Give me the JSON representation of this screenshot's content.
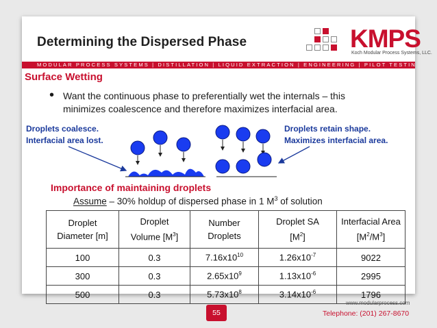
{
  "slide": {
    "title": "Determining the Dispersed Phase",
    "banner": "MODULAR PROCESS SYSTEMS | DISTILLATION | LIQUID EXTRACTION | ENGINEERING | PILOT TESTING",
    "subhead": "Surface Wetting",
    "bullet": "Want the continuous phase to preferentially wet the internals – this minimizes coalescence and therefore maximizes interfacial area.",
    "label_left_1": "Droplets coalesce.",
    "label_left_2": "Interfacial area lost.",
    "label_right_1": "Droplets retain shape.",
    "label_right_2": "Maximizes interfacial area.",
    "importance": "Importance of maintaining droplets",
    "assume_word": "Assume",
    "assume_text": " – 30% holdup of dispersed phase in 1 M",
    "assume_sup": "3",
    "assume_end": " of solution"
  },
  "logo": {
    "name": "KMPS",
    "subtitle": "Koch Modular Process Systems, LLC."
  },
  "table": {
    "headers": [
      {
        "line1": "Droplet",
        "line2": "Diameter [m]",
        "sup": "",
        "tail": ""
      },
      {
        "line1": "Droplet",
        "line2": "Volume [M",
        "sup": "3",
        "tail": "]"
      },
      {
        "line1": "Number",
        "line2": "Droplets",
        "sup": "",
        "tail": ""
      },
      {
        "line1": "Droplet SA",
        "line2": "[M",
        "sup": "2",
        "tail": "]"
      },
      {
        "line1": "Interfacial Area",
        "line2": "[M",
        "sup": "2",
        "tail": "/M",
        "sup2": "3",
        "tail2": "]"
      }
    ],
    "rows": [
      {
        "diameter": "100",
        "volume": "0.3",
        "number_base": "7.16x10",
        "number_exp": "10",
        "sa_base": "1.26x10",
        "sa_exp": "-7",
        "area": "9022"
      },
      {
        "diameter": "300",
        "volume": "0.3",
        "number_base": "2.65x10",
        "number_exp": "9",
        "sa_base": "1.13x10",
        "sa_exp": "-6",
        "area": "2995"
      },
      {
        "diameter": "500",
        "volume": "0.3",
        "number_base": "5.73x10",
        "number_exp": "8",
        "sa_base": "3.14x10",
        "sa_exp": "-6",
        "area": "1796"
      }
    ]
  },
  "footer": {
    "url": "www.modularprocess.com",
    "phone": "Telephone: (201) 267-8670",
    "page": "55"
  },
  "colors": {
    "accent": "#c8102e",
    "droplet": "#1a3cf0",
    "label": "#1b3a9c"
  }
}
